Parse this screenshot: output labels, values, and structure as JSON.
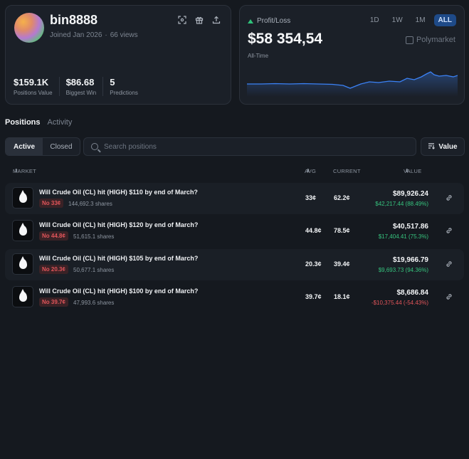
{
  "profile": {
    "username": "bin8888",
    "joined": "Joined Jan 2026",
    "views": "66 views",
    "icons": [
      "scan-icon",
      "gift-icon",
      "share-icon"
    ],
    "stats": [
      {
        "value": "$159.1K",
        "label": "Positions Value"
      },
      {
        "value": "$86.68",
        "label": "Biggest Win"
      },
      {
        "value": "5",
        "label": "Predictions"
      }
    ]
  },
  "pl": {
    "label": "Profit/Loss",
    "value": "$58 354,54",
    "sub": "All-Time",
    "periods": [
      "1D",
      "1W",
      "1M",
      "ALL"
    ],
    "active_period": "ALL",
    "brand": "Polymarket",
    "line_color": "#3b82f6"
  },
  "tabs": [
    "Positions",
    "Activity"
  ],
  "filter": {
    "active": "Active",
    "closed": "Closed"
  },
  "search": {
    "placeholder": "Search positions"
  },
  "sort": {
    "label": "Value"
  },
  "table": {
    "headers": {
      "market": "MARKET",
      "avg": "AVG",
      "current": "CURRENT",
      "value": "VALUE"
    },
    "rows": [
      {
        "title": "Will Crude Oil (CL) hit (HIGH) $110 by end of March?",
        "badge": "No 33¢",
        "shares": "144,692.3 shares",
        "avg": "33¢",
        "current": "62.2¢",
        "value": "$89,926.24",
        "pnl": "$42,217.44 (88.49%)",
        "pnl_sign": "pos"
      },
      {
        "title": "Will Crude Oil (CL) hit (HIGH) $120 by end of March?",
        "badge": "No 44.8¢",
        "shares": "51,615.1 shares",
        "avg": "44.8¢",
        "current": "78.5¢",
        "value": "$40,517.86",
        "pnl": "$17,404.41 (75.3%)",
        "pnl_sign": "pos"
      },
      {
        "title": "Will Crude Oil (CL) hit (HIGH) $105 by end of March?",
        "badge": "No 20.3¢",
        "shares": "50,677.1 shares",
        "avg": "20.3¢",
        "current": "39.4¢",
        "value": "$19,966.79",
        "pnl": "$9,693.73 (94.36%)",
        "pnl_sign": "pos"
      },
      {
        "title": "Will Crude Oil (CL) hit (HIGH) $100 by end of March?",
        "badge": "No 39.7¢",
        "shares": "47,993.6 shares",
        "avg": "39.7¢",
        "current": "18.1¢",
        "value": "$8,686.84",
        "pnl": "-$10,375.44 (-54.43%)",
        "pnl_sign": "neg"
      }
    ]
  }
}
